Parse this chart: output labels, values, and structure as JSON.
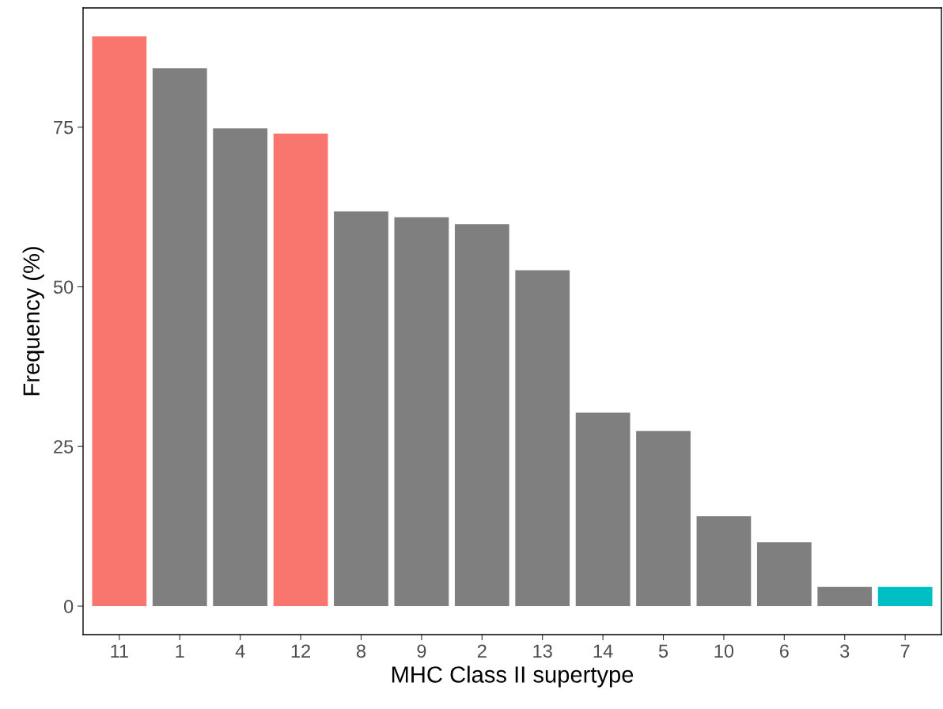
{
  "chart_data": {
    "type": "bar",
    "xlabel": "MHC Class II supertype",
    "ylabel": "Frequency (%)",
    "categories": [
      "11",
      "1",
      "4",
      "12",
      "8",
      "9",
      "2",
      "13",
      "14",
      "5",
      "10",
      "6",
      "3",
      "7"
    ],
    "values": [
      89.2,
      84.2,
      74.8,
      74.0,
      61.8,
      60.9,
      59.8,
      52.6,
      30.3,
      27.4,
      14.1,
      10.0,
      3.0,
      3.0
    ],
    "colors": [
      "#f8766d",
      "#7f7f7f",
      "#7f7f7f",
      "#f8766d",
      "#7f7f7f",
      "#7f7f7f",
      "#7f7f7f",
      "#7f7f7f",
      "#7f7f7f",
      "#7f7f7f",
      "#7f7f7f",
      "#7f7f7f",
      "#7f7f7f",
      "#00bfc4"
    ],
    "ylim": [
      -4.46,
      93.66
    ],
    "yticks": [
      0,
      25,
      50,
      75
    ],
    "grid": false
  }
}
